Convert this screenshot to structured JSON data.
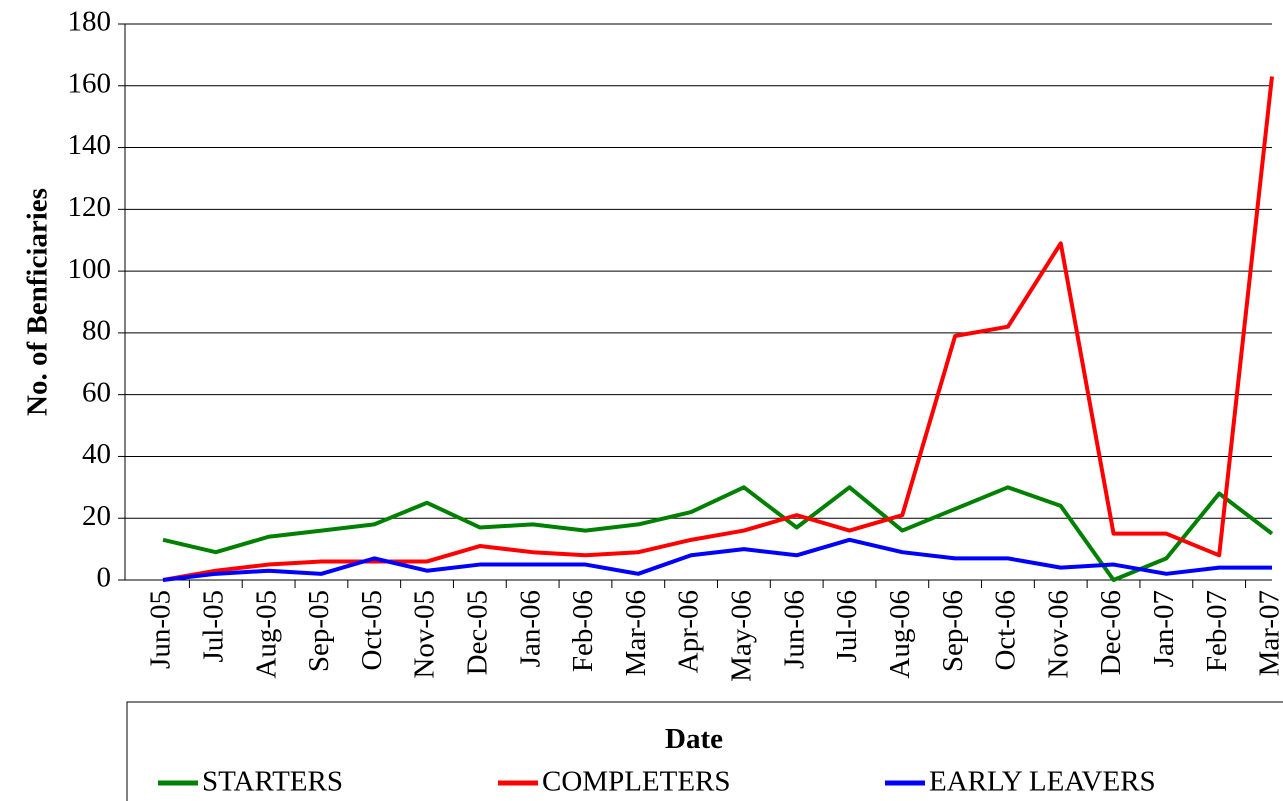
{
  "chart_data": {
    "type": "line",
    "y_label": "No. of Benficiaries",
    "x_label": "Date",
    "categories": [
      "Jun-05",
      "Jul-05",
      "Aug-05",
      "Sep-05",
      "Oct-05",
      "Nov-05",
      "Dec-05",
      "Jan-06",
      "Feb-06",
      "Mar-06",
      "Apr-06",
      "May-06",
      "Jun-06",
      "Jul-06",
      "Aug-06",
      "Sep-06",
      "Oct-06",
      "Nov-06",
      "Dec-06",
      "Jan-07",
      "Feb-07",
      "Mar-07"
    ],
    "series": [
      {
        "name": "STARTERS",
        "color": "#008000",
        "values": [
          13,
          9,
          14,
          16,
          18,
          25,
          17,
          18,
          16,
          18,
          22,
          30,
          17,
          30,
          16,
          23,
          30,
          24,
          0,
          7,
          28,
          15
        ]
      },
      {
        "name": "COMPLETERS",
        "color": "#ff0000",
        "values": [
          0,
          3,
          5,
          6,
          6,
          6,
          11,
          9,
          8,
          9,
          13,
          16,
          21,
          16,
          21,
          79,
          82,
          109,
          15,
          15,
          8,
          163
        ]
      },
      {
        "name": "EARLY LEAVERS",
        "color": "#0000ff",
        "values": [
          0,
          2,
          3,
          2,
          7,
          3,
          5,
          5,
          5,
          2,
          8,
          10,
          8,
          13,
          9,
          7,
          7,
          4,
          5,
          2,
          4,
          4
        ]
      }
    ],
    "ylim": [
      0,
      180
    ],
    "yticks": [
      0,
      20,
      40,
      60,
      80,
      100,
      120,
      140,
      160,
      180
    ],
    "grid": true,
    "legend": "bottom"
  }
}
